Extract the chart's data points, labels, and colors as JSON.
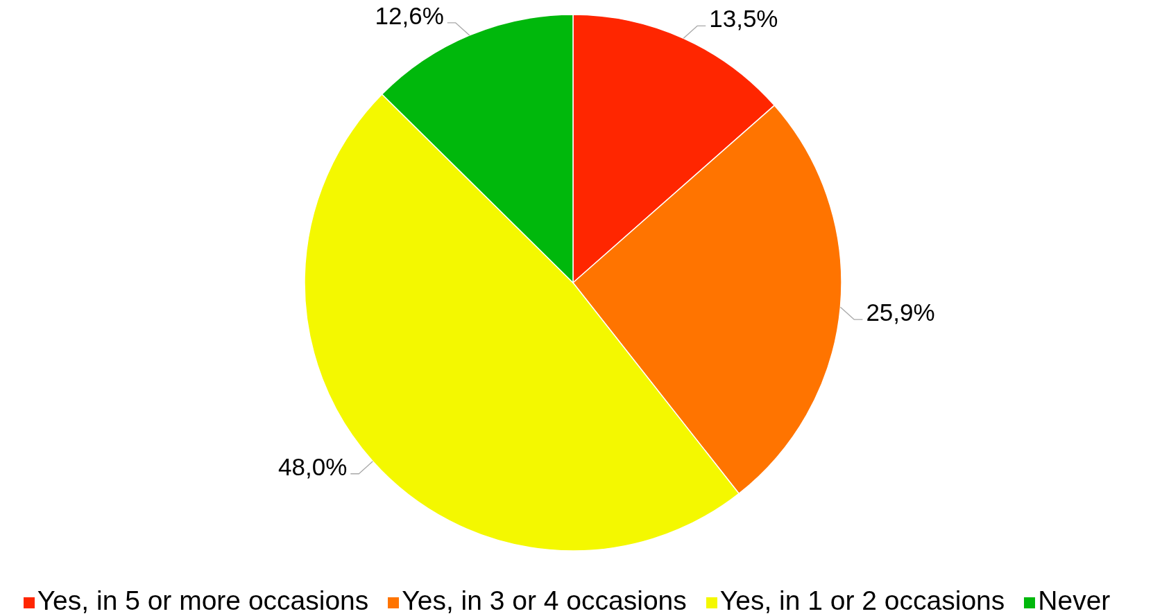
{
  "chart_data": {
    "type": "pie",
    "categories": [
      "Yes, in 5 or more occasions",
      "Yes, in 3 or 4 occasions",
      "Yes, in 1 or 2 occasions",
      "Never"
    ],
    "values": [
      13.5,
      25.9,
      48.0,
      12.6
    ],
    "colors": [
      "#ff2600",
      "#ff7400",
      "#f4f800",
      "#00b80c"
    ],
    "value_labels": [
      "13,5%",
      "25,9%",
      "48,0%",
      "12,6%"
    ],
    "legend": "bottom"
  }
}
